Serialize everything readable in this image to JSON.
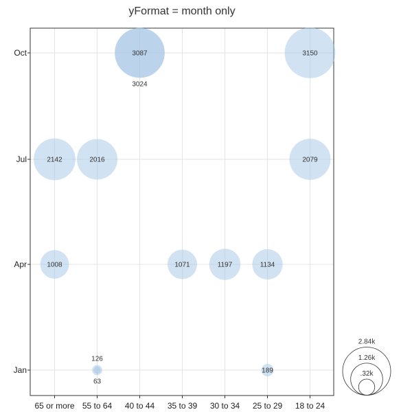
{
  "chart_data": {
    "type": "scatter",
    "title": "yFormat = month only",
    "xlabel": "",
    "ylabel": "",
    "x_categories": [
      "65 or more",
      "55 to 64",
      "40 to 44",
      "35 to 39",
      "30 to 34",
      "25 to 29",
      "18 to 24"
    ],
    "y_categories": [
      "Jan",
      "Apr",
      "Jul",
      "Oct"
    ],
    "grid": true,
    "bubble_color": "#a7c7e7",
    "points": [
      {
        "x": "40 to 44",
        "y": "Oct",
        "value": 3087,
        "label": "3087"
      },
      {
        "x": "40 to 44",
        "y": "Oct",
        "value": 3024,
        "label": "3024"
      },
      {
        "x": "18 to 24",
        "y": "Oct",
        "value": 3150,
        "label": "3150"
      },
      {
        "x": "65 or more",
        "y": "Jul",
        "value": 2142,
        "label": "2142"
      },
      {
        "x": "55 to 64",
        "y": "Jul",
        "value": 2016,
        "label": "2016"
      },
      {
        "x": "18 to 24",
        "y": "Jul",
        "value": 2079,
        "label": "2079"
      },
      {
        "x": "65 or more",
        "y": "Apr",
        "value": 1008,
        "label": "1008"
      },
      {
        "x": "35 to 39",
        "y": "Apr",
        "value": 1071,
        "label": "1071"
      },
      {
        "x": "30 to 34",
        "y": "Apr",
        "value": 1197,
        "label": "1197"
      },
      {
        "x": "25 to 29",
        "y": "Apr",
        "value": 1134,
        "label": "1134"
      },
      {
        "x": "55 to 64",
        "y": "Jan",
        "value": 126,
        "label": "126"
      },
      {
        "x": "55 to 64",
        "y": "Jan",
        "value": 63,
        "label": "63"
      },
      {
        "x": "25 to 29",
        "y": "Jan",
        "value": 189,
        "label": "189"
      }
    ],
    "size_legend": [
      {
        "value": 2840,
        "label": "2.84k"
      },
      {
        "value": 1260,
        "label": "1.26k"
      },
      {
        "value": 320,
        "label": ".32k"
      }
    ]
  }
}
